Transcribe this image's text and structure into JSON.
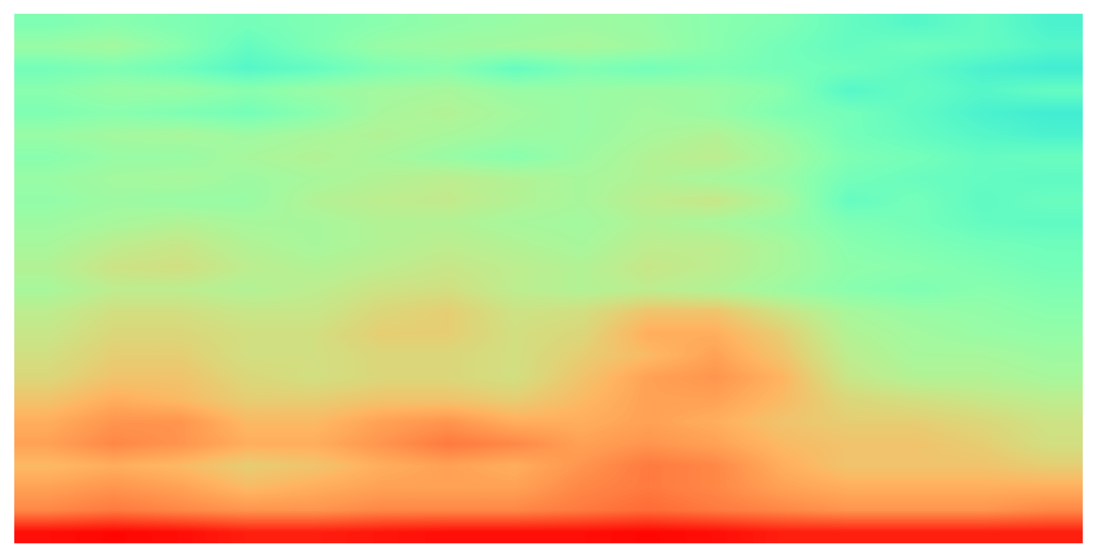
{
  "chart_data": {
    "type": "heatmap",
    "color": "rainbow",
    "color_range": [
      0,
      1
    ],
    "tick_labels": false,
    "cells": [
      [
        0.5,
        0.52,
        0.5,
        0.48,
        0.5,
        0.52,
        0.54,
        0.55,
        0.56,
        0.55,
        0.52,
        0.5,
        0.45,
        0.42,
        0.45,
        0.4
      ],
      [
        0.55,
        0.57,
        0.52,
        0.45,
        0.5,
        0.55,
        0.56,
        0.57,
        0.58,
        0.56,
        0.52,
        0.48,
        0.45,
        0.47,
        0.45,
        0.42
      ],
      [
        0.48,
        0.5,
        0.47,
        0.42,
        0.45,
        0.5,
        0.52,
        0.45,
        0.5,
        0.48,
        0.5,
        0.48,
        0.47,
        0.44,
        0.4,
        0.38
      ],
      [
        0.52,
        0.55,
        0.55,
        0.52,
        0.55,
        0.57,
        0.58,
        0.55,
        0.55,
        0.56,
        0.55,
        0.52,
        0.42,
        0.45,
        0.42,
        0.45
      ],
      [
        0.5,
        0.52,
        0.5,
        0.48,
        0.52,
        0.58,
        0.6,
        0.57,
        0.55,
        0.57,
        0.55,
        0.5,
        0.48,
        0.44,
        0.4,
        0.38
      ],
      [
        0.55,
        0.57,
        0.58,
        0.56,
        0.58,
        0.6,
        0.58,
        0.56,
        0.55,
        0.58,
        0.6,
        0.55,
        0.48,
        0.45,
        0.42,
        0.4
      ],
      [
        0.52,
        0.55,
        0.55,
        0.58,
        0.6,
        0.58,
        0.55,
        0.52,
        0.56,
        0.6,
        0.62,
        0.57,
        0.5,
        0.48,
        0.45,
        0.46
      ],
      [
        0.55,
        0.57,
        0.58,
        0.56,
        0.58,
        0.6,
        0.62,
        0.6,
        0.58,
        0.6,
        0.58,
        0.55,
        0.48,
        0.46,
        0.45,
        0.44
      ],
      [
        0.54,
        0.56,
        0.55,
        0.55,
        0.6,
        0.62,
        0.63,
        0.6,
        0.58,
        0.62,
        0.64,
        0.58,
        0.45,
        0.48,
        0.44,
        0.46
      ],
      [
        0.56,
        0.58,
        0.6,
        0.58,
        0.58,
        0.6,
        0.6,
        0.58,
        0.57,
        0.6,
        0.58,
        0.55,
        0.5,
        0.48,
        0.45,
        0.44
      ],
      [
        0.58,
        0.62,
        0.64,
        0.6,
        0.58,
        0.6,
        0.62,
        0.6,
        0.58,
        0.62,
        0.62,
        0.58,
        0.52,
        0.5,
        0.48,
        0.47
      ],
      [
        0.6,
        0.65,
        0.66,
        0.62,
        0.6,
        0.62,
        0.64,
        0.62,
        0.6,
        0.64,
        0.62,
        0.58,
        0.53,
        0.52,
        0.5,
        0.48
      ],
      [
        0.58,
        0.62,
        0.62,
        0.6,
        0.62,
        0.65,
        0.66,
        0.62,
        0.6,
        0.62,
        0.6,
        0.56,
        0.52,
        0.5,
        0.52,
        0.5
      ],
      [
        0.62,
        0.66,
        0.66,
        0.64,
        0.64,
        0.68,
        0.7,
        0.65,
        0.66,
        0.72,
        0.72,
        0.65,
        0.58,
        0.55,
        0.54,
        0.52
      ],
      [
        0.64,
        0.68,
        0.68,
        0.66,
        0.66,
        0.7,
        0.7,
        0.66,
        0.68,
        0.76,
        0.76,
        0.7,
        0.6,
        0.57,
        0.55,
        0.54
      ],
      [
        0.66,
        0.7,
        0.7,
        0.66,
        0.66,
        0.68,
        0.68,
        0.66,
        0.7,
        0.74,
        0.78,
        0.72,
        0.62,
        0.58,
        0.58,
        0.56
      ],
      [
        0.68,
        0.72,
        0.72,
        0.68,
        0.66,
        0.68,
        0.68,
        0.66,
        0.72,
        0.78,
        0.8,
        0.75,
        0.64,
        0.6,
        0.6,
        0.58
      ],
      [
        0.72,
        0.76,
        0.74,
        0.7,
        0.7,
        0.72,
        0.72,
        0.7,
        0.74,
        0.78,
        0.78,
        0.74,
        0.68,
        0.66,
        0.64,
        0.62
      ],
      [
        0.76,
        0.8,
        0.8,
        0.74,
        0.74,
        0.78,
        0.8,
        0.76,
        0.76,
        0.78,
        0.76,
        0.72,
        0.7,
        0.7,
        0.68,
        0.65
      ],
      [
        0.78,
        0.82,
        0.8,
        0.76,
        0.76,
        0.8,
        0.84,
        0.82,
        0.78,
        0.8,
        0.78,
        0.74,
        0.72,
        0.72,
        0.7,
        0.66
      ],
      [
        0.74,
        0.76,
        0.74,
        0.7,
        0.72,
        0.76,
        0.78,
        0.76,
        0.8,
        0.84,
        0.82,
        0.76,
        0.72,
        0.72,
        0.72,
        0.7
      ],
      [
        0.78,
        0.8,
        0.78,
        0.74,
        0.76,
        0.78,
        0.78,
        0.78,
        0.82,
        0.84,
        0.82,
        0.78,
        0.76,
        0.76,
        0.76,
        0.76
      ],
      [
        0.82,
        0.84,
        0.82,
        0.8,
        0.8,
        0.82,
        0.82,
        0.82,
        0.84,
        0.86,
        0.84,
        0.82,
        0.8,
        0.8,
        0.8,
        0.82
      ],
      [
        0.98,
        0.99,
        0.98,
        0.96,
        0.96,
        0.97,
        0.98,
        0.98,
        0.98,
        0.99,
        0.98,
        0.96,
        0.96,
        0.96,
        0.96,
        0.96
      ]
    ]
  }
}
